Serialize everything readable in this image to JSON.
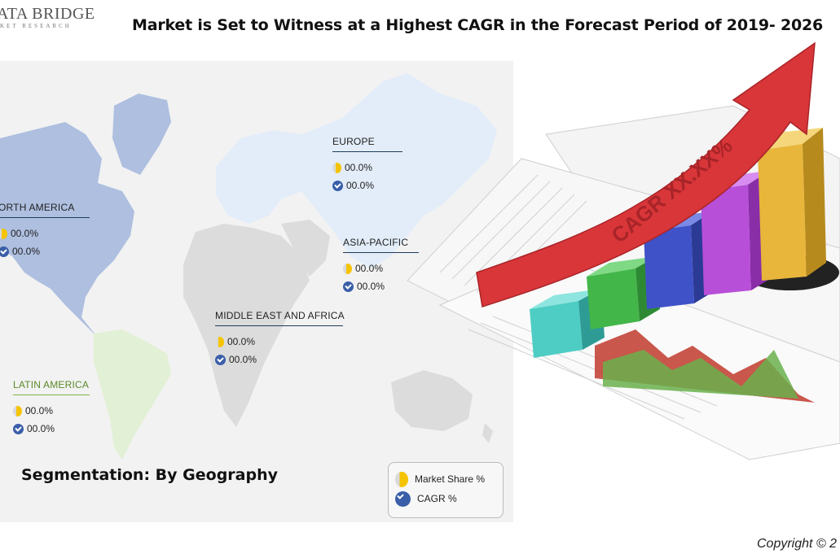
{
  "logo": {
    "name": "ATA BRIDGE",
    "sub": "KET RESEARCH"
  },
  "title": "Market is Set to Witness at a Highest CAGR in the Forecast Period of 2019- 2026",
  "regions": [
    {
      "id": "north-america",
      "name": "ORTH AMERICA",
      "market_share": "00.0%",
      "cagr": "00.0%"
    },
    {
      "id": "europe",
      "name": "EUROPE",
      "market_share": "00.0%",
      "cagr": "00.0%"
    },
    {
      "id": "asia-pacific",
      "name": "ASIA-PACIFIC",
      "market_share": "00.0%",
      "cagr": "00.0%"
    },
    {
      "id": "middle-east-africa",
      "name": "MIDDLE EAST AND AFRICA",
      "market_share": "00.0%",
      "cagr": "00.0%"
    },
    {
      "id": "latin-america",
      "name": "LATIN AMERICA",
      "market_share": "00.0%",
      "cagr": "00.0%"
    }
  ],
  "segmentation_label": "Segmentation: By Geography",
  "legend": {
    "market_share": "Market Share  %",
    "cagr": "CAGR  %"
  },
  "graphic": {
    "arrow_text": "CAGR XX.XX%"
  },
  "copyright": "Copyright © 2",
  "colors": {
    "map_background": "#f2f2f2",
    "north_america": "#aebfe0",
    "europe_asia": "#e3edf9",
    "latin_america": "#e2f0d5",
    "africa_other": "#dcdcdc",
    "market_share_icon": "#f5c400",
    "cagr_icon": "#3a5ea8",
    "arrow": "#d9363a",
    "bars": [
      "#4ecdc4",
      "#43b649",
      "#3f52c8",
      "#b84fd8",
      "#e8b63a"
    ]
  }
}
